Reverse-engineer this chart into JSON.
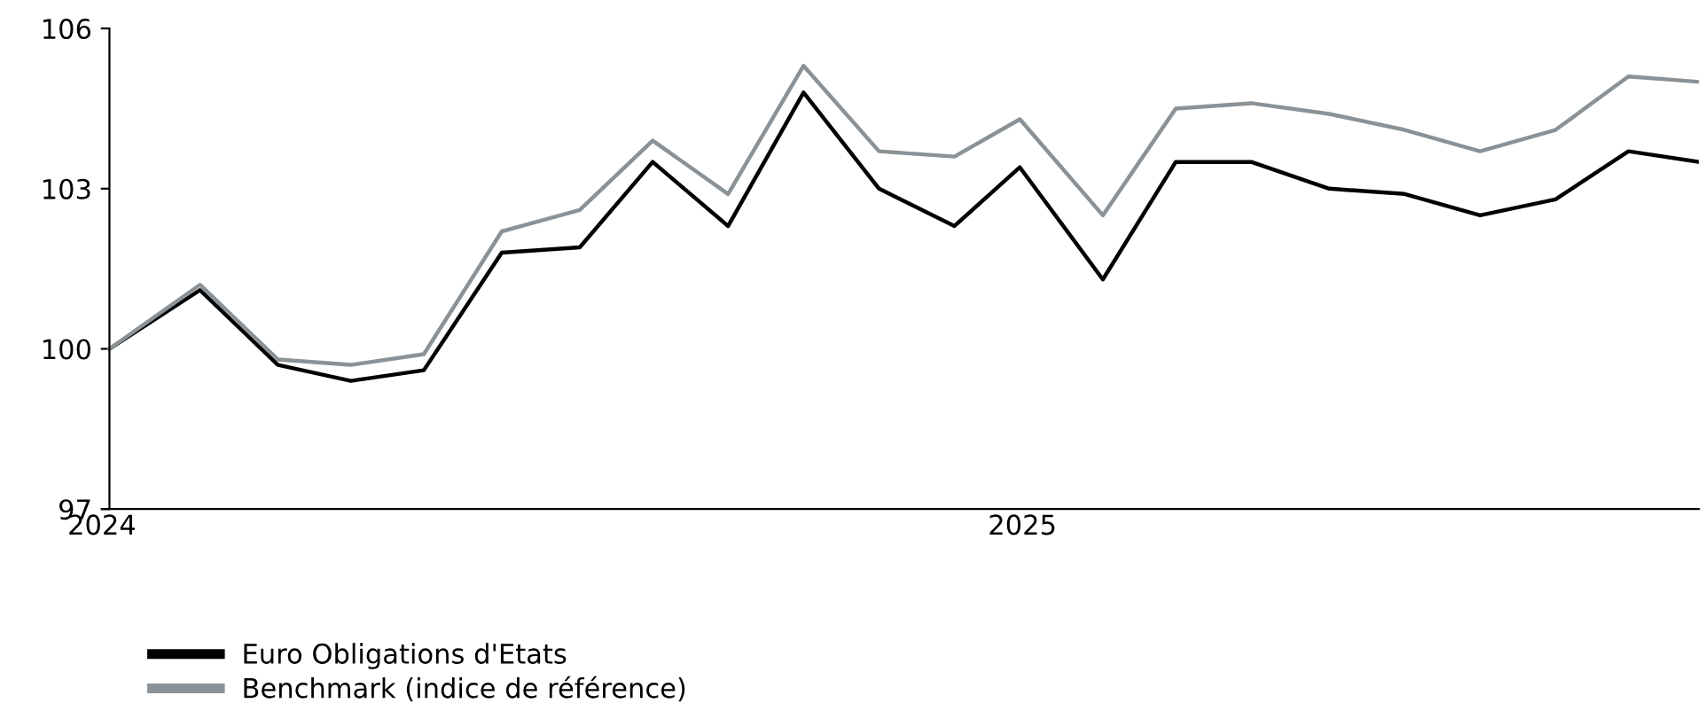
{
  "chart_data": {
    "type": "line",
    "x": [
      "2024-01-04",
      "2024-02-09",
      "2024-03-11",
      "2024-04-09",
      "2024-05-08",
      "2024-06-08",
      "2024-07-09",
      "2024-08-07",
      "2024-09-06",
      "2024-10-06",
      "2024-11-05",
      "2024-12-05",
      "2024-12-31",
      "2025-02-02",
      "2025-03-03",
      "2025-04-02",
      "2025-05-03",
      "2025-06-02",
      "2025-07-02",
      "2025-08-01",
      "2025-08-30",
      "2025-09-27"
    ],
    "series": [
      {
        "name": "Euro Obligations d'Etats",
        "color": "#000000",
        "values": [
          100,
          101.1,
          99.7,
          99.4,
          99.6,
          101.8,
          101.9,
          103.5,
          102.3,
          104.8,
          103.0,
          102.3,
          103.4,
          101.3,
          103.5,
          103.5,
          103.0,
          102.9,
          102.5,
          102.8,
          103.7,
          103.5
        ]
      },
      {
        "name": "Benchmark (indice de référence)",
        "color": "#8a9297",
        "values": [
          100,
          101.2,
          99.8,
          99.7,
          99.9,
          102.2,
          102.6,
          103.9,
          102.9,
          105.3,
          103.7,
          103.6,
          104.3,
          102.5,
          104.5,
          104.6,
          104.4,
          104.1,
          103.7,
          104.1,
          105.1,
          105.0
        ]
      }
    ],
    "xlim": [
      "2024-01-01",
      "2025-09-27"
    ],
    "xticks": [
      {
        "value": "2024-01-01",
        "label": "2024"
      },
      {
        "value": "2025-01-01",
        "label": "2025"
      }
    ],
    "ylim": [
      97,
      106
    ],
    "yticks": [
      97,
      100,
      103,
      106
    ],
    "grid": false,
    "legend": "bottom left",
    "marker": "none",
    "line_style": "solid"
  }
}
